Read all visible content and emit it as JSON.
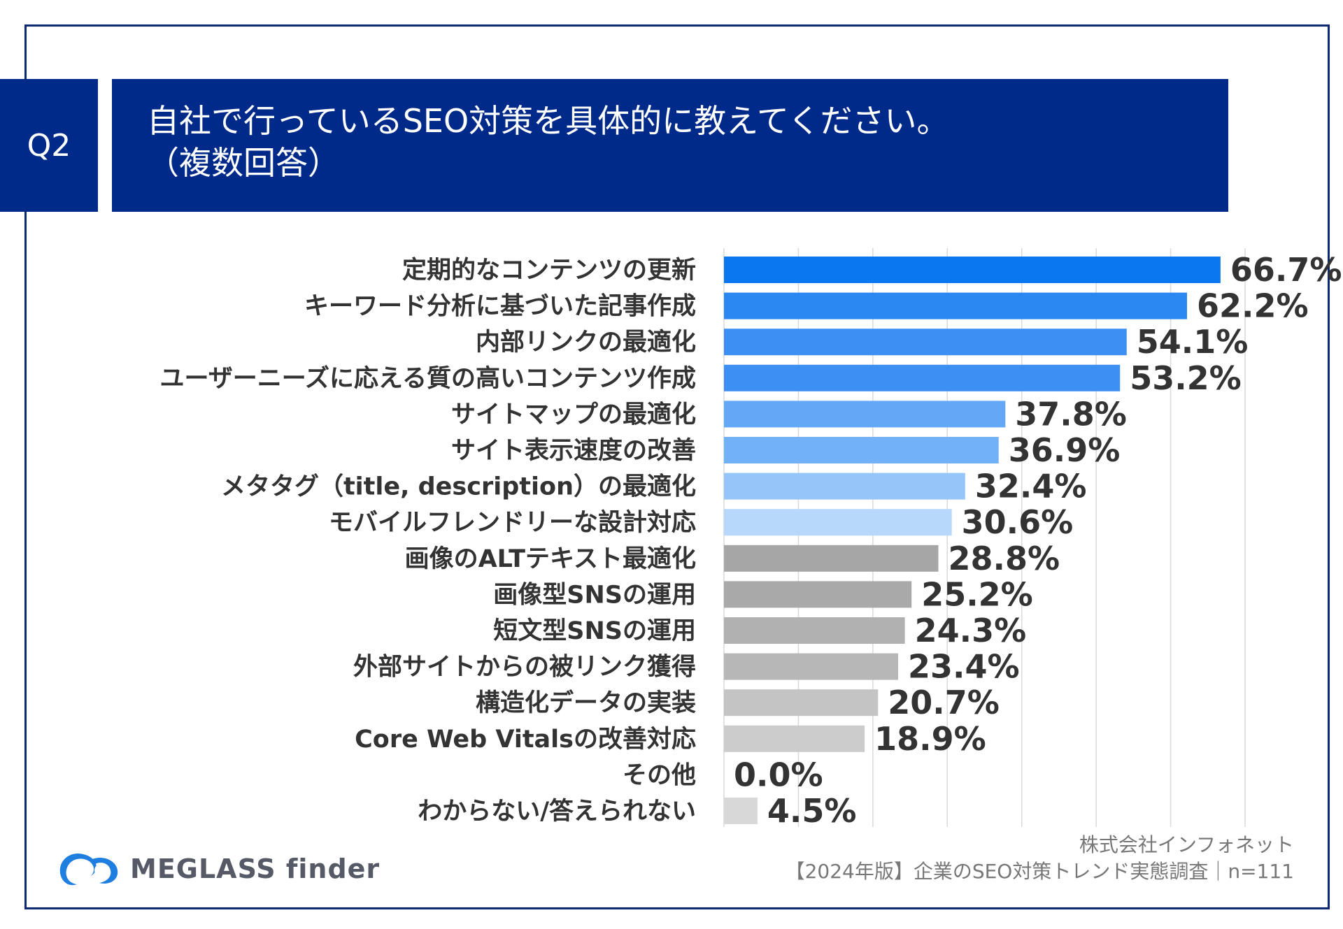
{
  "question": {
    "number": "Q2",
    "title_line1": "自社で行っているSEO対策を具体的に教えてください。",
    "title_line2": "（複数回答）"
  },
  "chart_data": {
    "type": "bar",
    "orientation": "horizontal",
    "title": "自社で行っているSEO対策を具体的に教えてください。（複数回答）",
    "categories": [
      "定期的なコンテンツの更新",
      "キーワード分析に基づいた記事作成",
      "内部リンクの最適化",
      "ユーザーニーズに応える質の高いコンテンツ作成",
      "サイトマップの最適化",
      "サイト表示速度の改善",
      "メタタグ（title, description）の最適化",
      "モバイルフレンドリーな設計対応",
      "画像のALTテキスト最適化",
      "画像型SNSの運用",
      "短文型SNSの運用",
      "外部サイトからの被リンク獲得",
      "構造化データの実装",
      "Core Web Vitalsの改善対応",
      "その他",
      "わからない/答えられない"
    ],
    "values": [
      66.7,
      62.2,
      54.1,
      53.2,
      37.8,
      36.9,
      32.4,
      30.6,
      28.8,
      25.2,
      24.3,
      23.4,
      20.7,
      18.9,
      0.0,
      4.5
    ],
    "value_labels": [
      "66.7%",
      "62.2%",
      "54.1%",
      "53.2%",
      "37.8%",
      "36.9%",
      "32.4%",
      "30.6%",
      "28.8%",
      "25.2%",
      "24.3%",
      "23.4%",
      "20.7%",
      "18.9%",
      "0.0%",
      "4.5%"
    ],
    "colors": [
      "#0a77f0",
      "#2b87f2",
      "#3d90f3",
      "#3d90f3",
      "#63a8f6",
      "#72b0f7",
      "#96c5f9",
      "#b8d8fb",
      "#a6a6a6",
      "#a9a9a9",
      "#b1b1b1",
      "#b7b7b7",
      "#c4c4c4",
      "#cccccc",
      "#d2d2d2",
      "#d8d8d8"
    ],
    "xlim": [
      0,
      70
    ],
    "grid_step": 10,
    "grid": true,
    "xlabel": "",
    "ylabel": "",
    "unit": "%"
  },
  "footer": {
    "company": "株式会社インフォネット",
    "survey": "【2024年版】企業のSEO対策トレンド実態調査｜n=111"
  },
  "logo": {
    "text": "MEGLASS finder",
    "icon": "meglass-logo-icon"
  }
}
